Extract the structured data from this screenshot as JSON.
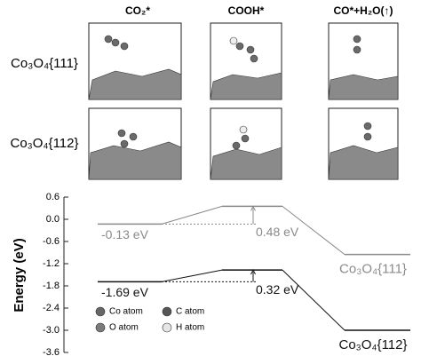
{
  "chart_data": {
    "type": "energy-profile",
    "columns": [
      "CO₂*",
      "COOH*",
      "CO*+H₂O(↑)"
    ],
    "rows": [
      {
        "name": "Co₃O₄{111}",
        "color": "#8a8a8a"
      },
      {
        "name": "Co₃O₄{112}",
        "color": "#111111"
      }
    ],
    "ylabel": "Energy (eV)",
    "ylim": [
      -3.6,
      0.6
    ],
    "yticks": [
      0.6,
      {
        "value": 0,
        "label": "0.0"
      },
      -0.6,
      -1.2,
      -1.8,
      -2.4,
      {
        "value": -3,
        "label": "-3.0"
      },
      -3.6
    ],
    "series": [
      {
        "name": "Co₃O₄{111}",
        "color": "#8a8a8a",
        "values": [
          -0.13,
          0.35,
          -0.95
        ],
        "start_label": "-0.13 eV",
        "barrier": {
          "value": 0.48,
          "label": "0.48 eV"
        }
      },
      {
        "name": "Co₃O₄{112}",
        "color": "#111111",
        "values": [
          -1.69,
          -1.37,
          -3.0
        ],
        "start_label": "-1.69 eV",
        "barrier": {
          "value": 0.32,
          "label": "0.32 eV"
        }
      }
    ],
    "legend": [
      {
        "name": "Co atom",
        "color": "#666666"
      },
      {
        "name": "C atom",
        "color": "#555555"
      },
      {
        "name": "O atom",
        "color": "#7a7a7a"
      },
      {
        "name": "H atom",
        "color": "#e6e6e6"
      }
    ]
  }
}
